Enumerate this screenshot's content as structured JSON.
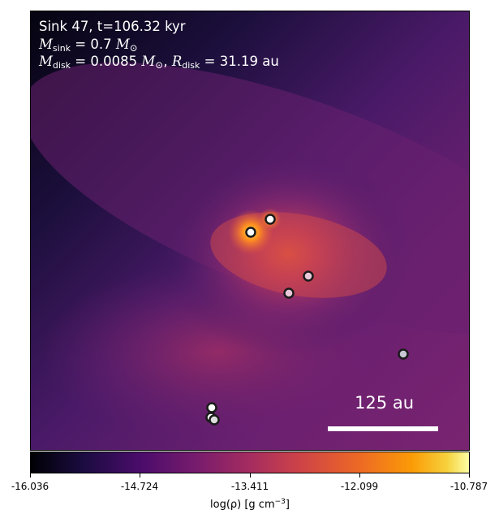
{
  "info": {
    "line1": "Sink 47, t=106.32 kyr",
    "msink_label": "sink",
    "msink_value": "0.7",
    "mdisk_label": "disk",
    "mdisk_value": "0.0085",
    "rdisk_label": "disk",
    "rdisk_value": "31.19",
    "rdisk_unit": "au"
  },
  "scale_bar": {
    "label": "125 au"
  },
  "colorbar": {
    "ticks": [
      "-16.036",
      "-14.724",
      "-13.411",
      "-12.099",
      "-10.787"
    ],
    "label_prefix": "log(ρ) [g cm",
    "label_exp": "−3",
    "label_suffix": "]"
  },
  "sinks": [
    {
      "fill": "#ffffff"
    },
    {
      "fill": "#ffffff"
    },
    {
      "fill": "#e9c9d9"
    },
    {
      "fill": "#e9c9d9"
    },
    {
      "fill": "#c8c8d4"
    },
    {
      "fill": "#ffffff"
    },
    {
      "fill": "#ffffff"
    },
    {
      "fill": "#dddddd"
    }
  ],
  "colors": {
    "cmap": "inferno/plasma-like",
    "text": "#ffffff"
  }
}
